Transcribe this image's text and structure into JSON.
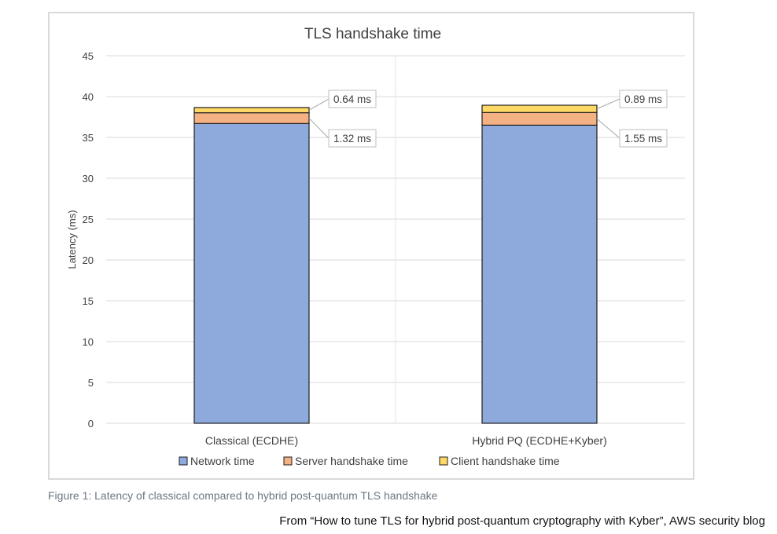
{
  "chart_data": {
    "type": "bar",
    "stacked": true,
    "title": "TLS handshake time",
    "xlabel": "",
    "ylabel": "Latency (ms)",
    "ylim": [
      0,
      45
    ],
    "yticks": [
      0,
      5,
      10,
      15,
      20,
      25,
      30,
      35,
      40,
      45
    ],
    "grid": true,
    "legend_position": "bottom",
    "categories": [
      "Classical (ECDHE)",
      "Hybrid PQ (ECDHE+Kyber)"
    ],
    "series": [
      {
        "name": "Network time",
        "values": [
          36.7,
          36.5
        ],
        "color": "#8ea9db"
      },
      {
        "name": "Server handshake time",
        "values": [
          1.32,
          1.55
        ],
        "color": "#f4b183"
      },
      {
        "name": "Client handshake time",
        "values": [
          0.64,
          0.89
        ],
        "color": "#ffd966"
      }
    ],
    "annotations": [
      {
        "category": 0,
        "series": 2,
        "text": "0.64 ms"
      },
      {
        "category": 0,
        "series": 1,
        "text": "1.32 ms"
      },
      {
        "category": 1,
        "series": 2,
        "text": "0.89 ms"
      },
      {
        "category": 1,
        "series": 1,
        "text": "1.55 ms"
      }
    ]
  },
  "caption": "Figure 1: Latency of classical compared to hybrid post-quantum TLS handshake",
  "source": "From “How to tune TLS for hybrid post-quantum cryptography with Kyber”, AWS security blog"
}
